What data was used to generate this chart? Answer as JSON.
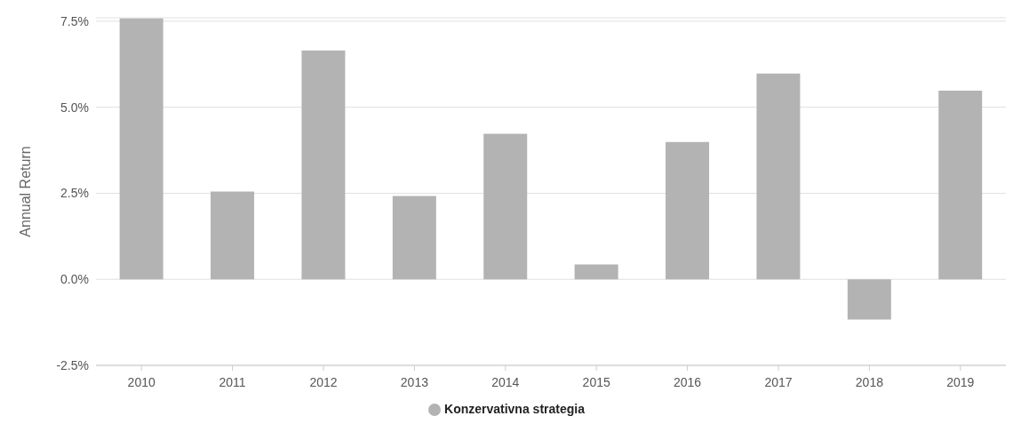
{
  "chart_data": {
    "type": "bar",
    "ylabel": "Annual Return",
    "categories": [
      "2010",
      "2011",
      "2012",
      "2013",
      "2014",
      "2015",
      "2016",
      "2017",
      "2018",
      "2019"
    ],
    "series": [
      {
        "name": "Konzervativna strategia",
        "color": "#b3b3b3",
        "values": [
          7.58,
          2.55,
          6.65,
          2.42,
          4.23,
          0.43,
          3.99,
          5.98,
          -1.17,
          5.48
        ]
      }
    ],
    "ylim": [
      -2.5,
      7.6
    ],
    "yticks": [
      {
        "value": -2.5,
        "label": "-2.5%"
      },
      {
        "value": 0,
        "label": "0.0%"
      },
      {
        "value": 2.5,
        "label": "2.5%"
      },
      {
        "value": 5,
        "label": "5.0%"
      },
      {
        "value": 7.5,
        "label": "7.5%"
      }
    ],
    "grid": "y",
    "legend": "bottom"
  }
}
